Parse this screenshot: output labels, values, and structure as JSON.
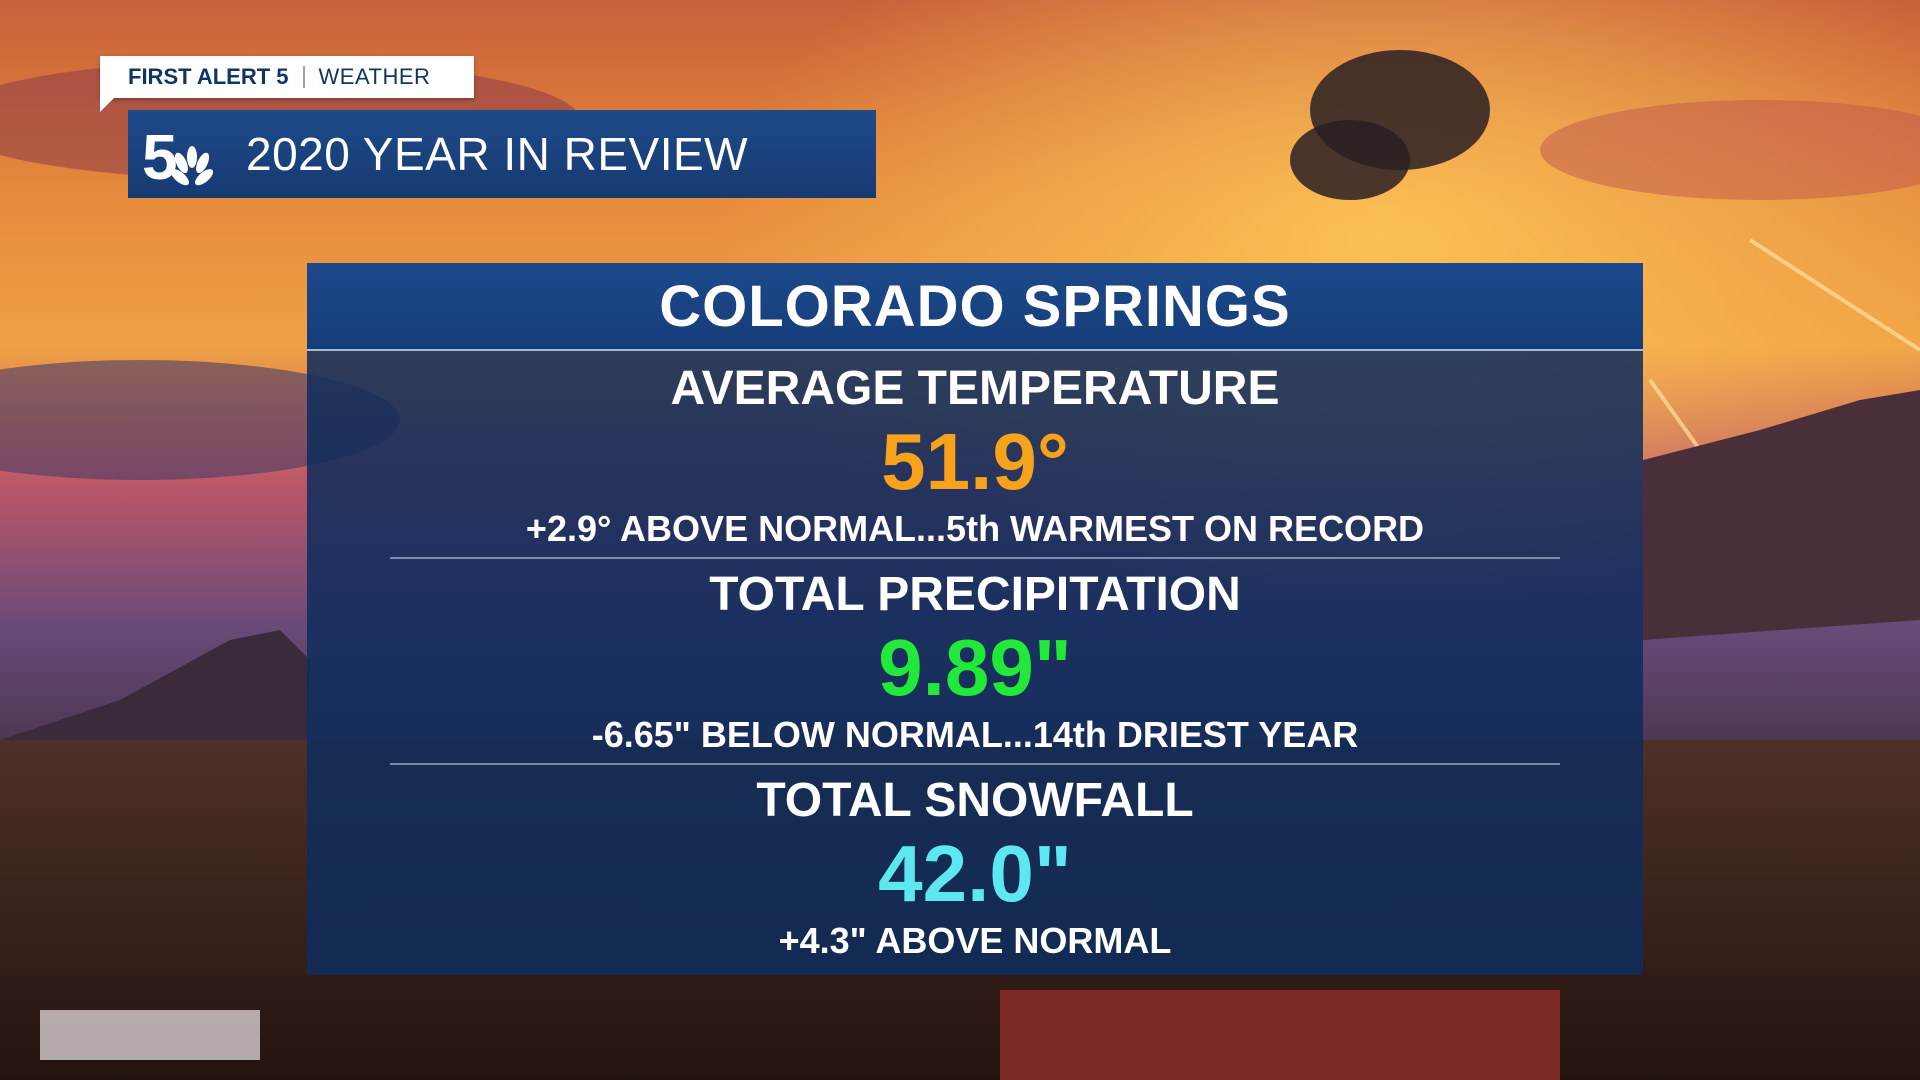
{
  "brand": {
    "alert_label": "FIRST ALERT 5",
    "alert_sub": "WEATHER",
    "logo": "channel-5-peacock-logo",
    "title": "2020 YEAR IN REVIEW"
  },
  "panel": {
    "city": "COLORADO SPRINGS",
    "stats": [
      {
        "label": "AVERAGE TEMPERATURE",
        "value": "51.9°",
        "note": "+2.9° ABOVE NORMAL...5th WARMEST ON RECORD",
        "color": "#f7a21b"
      },
      {
        "label": "TOTAL PRECIPITATION",
        "value": "9.89\"",
        "note": "-6.65\" BELOW NORMAL...14th DRIEST YEAR",
        "color": "#22e83a"
      },
      {
        "label": "TOTAL SNOWFALL",
        "value": "42.0\"",
        "note": "+4.3\" ABOVE NORMAL",
        "color": "#5ce8ee"
      }
    ]
  },
  "colors": {
    "panel_bg": "#0e2c5c",
    "title_bar": "#1f4a8a",
    "brand_text": "#0f3566"
  }
}
